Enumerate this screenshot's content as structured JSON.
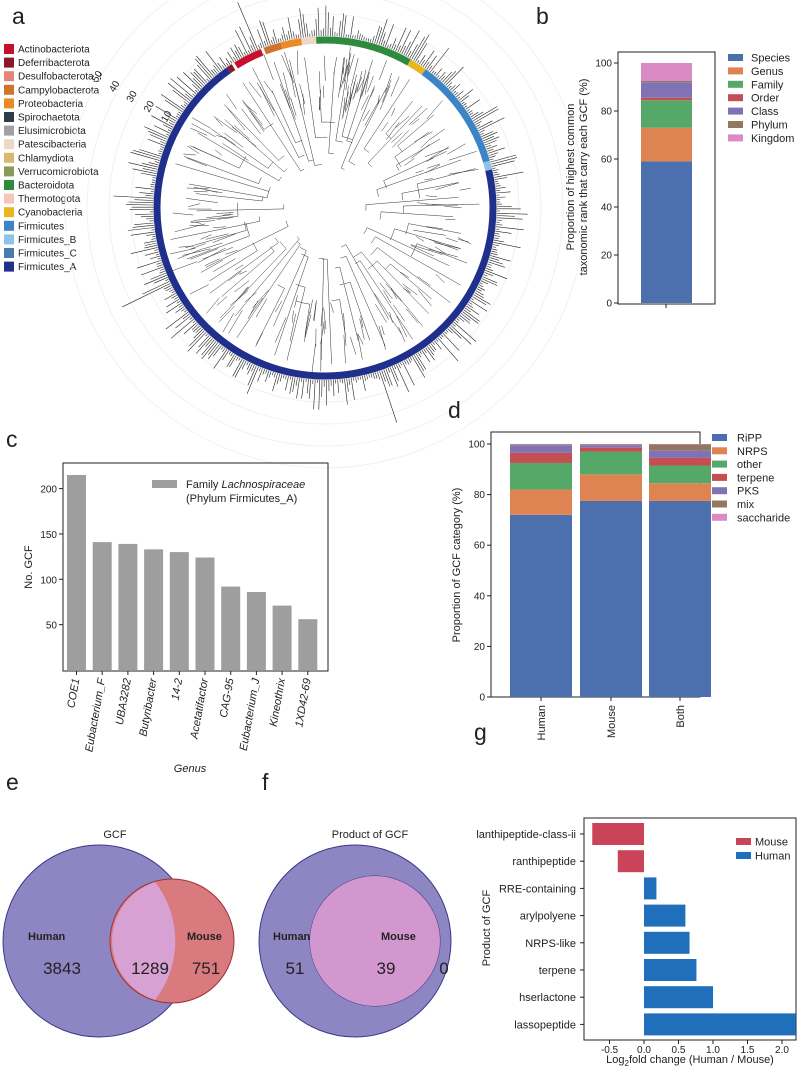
{
  "panel_labels": [
    "a",
    "b",
    "c",
    "d",
    "e",
    "f",
    "g"
  ],
  "chart_data": [
    {
      "panel": "a",
      "type": "circular-phylogeny",
      "legend": [
        {
          "name": "Actinobacteriota",
          "color": "#c8102e"
        },
        {
          "name": "Deferribacterota",
          "color": "#8a1a2a"
        },
        {
          "name": "Desulfobacterota_I",
          "color": "#e7847a"
        },
        {
          "name": "Campylobacterota",
          "color": "#d0732c"
        },
        {
          "name": "Proteobacteria",
          "color": "#ea8a28"
        },
        {
          "name": "Spirochaetota",
          "color": "#2d3b4a"
        },
        {
          "name": "Elusimicrobiota",
          "color": "#a0a0a0"
        },
        {
          "name": "Patescibacteria",
          "color": "#ecd8c6"
        },
        {
          "name": "Chlamydiota",
          "color": "#dbb66e"
        },
        {
          "name": "Verrucomicrobiota",
          "color": "#8a9a5b"
        },
        {
          "name": "Bacteroidota",
          "color": "#2e8b3e"
        },
        {
          "name": "Thermotogota",
          "color": "#f5c5b8"
        },
        {
          "name": "Cyanobacteria",
          "color": "#e8b61e"
        },
        {
          "name": "Firmicutes",
          "color": "#3b85c6"
        },
        {
          "name": "Firmicutes_B",
          "color": "#8ec2e6"
        },
        {
          "name": "Firmicutes_C",
          "color": "#4a7bb0"
        },
        {
          "name": "Firmicutes_A",
          "color": "#1f2f8c"
        }
      ],
      "radial_ticks": [
        10,
        20,
        30,
        40,
        50
      ]
    },
    {
      "panel": "b",
      "type": "bar",
      "stacked": true,
      "ylabel": "Proportion of highest common taxonomic rank that carry each GCF (%)",
      "ylabel_lines": [
        "Proportion of highest common",
        "taxonomic rank that carry each GCF (%)"
      ],
      "ylim": [
        0,
        100
      ],
      "yticks": [
        0,
        20,
        40,
        60,
        80,
        100
      ],
      "series": [
        {
          "name": "Species",
          "color": "#4c6fad",
          "values": [
            59
          ]
        },
        {
          "name": "Genus",
          "color": "#dd8452",
          "values": [
            14
          ]
        },
        {
          "name": "Family",
          "color": "#55a868",
          "values": [
            11.5
          ]
        },
        {
          "name": "Order",
          "color": "#c44e52",
          "values": [
            1
          ]
        },
        {
          "name": "Class",
          "color": "#8172b3",
          "values": [
            6.5
          ]
        },
        {
          "name": "Phylum",
          "color": "#937860",
          "values": [
            0.5
          ]
        },
        {
          "name": "Kingdom",
          "color": "#da8bc3",
          "values": [
            7.5
          ]
        }
      ]
    },
    {
      "panel": "c",
      "type": "bar",
      "xlabel": "Genus",
      "ylabel": "No. GCF",
      "ylim": [
        0,
        225
      ],
      "yticks": [
        50,
        100,
        150,
        200
      ],
      "legend": {
        "prefix": "Family ",
        "family": "Lachnospiraceae",
        "line2": "(Phylum Firmicutes_A)",
        "color": "#9e9e9e"
      },
      "categories": [
        "COE1",
        "Eubacterium_F",
        "UBA3282",
        "Butyribacter",
        "14-2",
        "Acetatifactor",
        "CAG-95",
        "Eubacterium_J",
        "Kineothrix",
        "1XD42-69"
      ],
      "values": [
        215,
        141,
        139,
        133,
        130,
        124,
        92,
        86,
        71,
        56
      ]
    },
    {
      "panel": "d",
      "type": "bar",
      "stacked": true,
      "ylabel": "Proportion of GCF category (%)",
      "ylim": [
        0,
        100
      ],
      "yticks": [
        0,
        20,
        40,
        60,
        80,
        100
      ],
      "categories": [
        "Human",
        "Mouse",
        "Both"
      ],
      "series": [
        {
          "name": "RiPP",
          "color": "#4c6fad",
          "values": [
            72,
            77.5,
            77.5
          ]
        },
        {
          "name": "NRPS",
          "color": "#dd8452",
          "values": [
            10,
            10.5,
            7
          ]
        },
        {
          "name": "other",
          "color": "#55a868",
          "values": [
            10.5,
            9,
            7
          ]
        },
        {
          "name": "terpene",
          "color": "#c44e52",
          "values": [
            4,
            1.5,
            3
          ]
        },
        {
          "name": "PKS",
          "color": "#8172b3",
          "values": [
            3,
            1,
            3
          ]
        },
        {
          "name": "mix",
          "color": "#937860",
          "values": [
            0.3,
            0.3,
            2.3
          ]
        },
        {
          "name": "saccharide",
          "color": "#da8bc3",
          "values": [
            0.2,
            0.2,
            0.2
          ]
        }
      ]
    },
    {
      "panel": "e",
      "type": "venn",
      "title": "GCF",
      "sets": [
        {
          "name": "Human",
          "only": "3843",
          "color": "#8e86c3"
        },
        {
          "name": "Mouse",
          "only": "751",
          "color": "#d97a7e"
        }
      ],
      "intersection": "1289"
    },
    {
      "panel": "f",
      "type": "venn",
      "title": "Product of GCF",
      "sets": [
        {
          "name": "Human",
          "only": "51",
          "color": "#8e86c3"
        },
        {
          "name": "Mouse",
          "only": "0",
          "color": "#d397cf"
        }
      ],
      "intersection": "39"
    },
    {
      "panel": "g",
      "type": "bar",
      "orientation": "horizontal",
      "ylabel": "Product of GCF",
      "xlabel_parts": [
        "Log",
        "2",
        "fold change (Human / Mouse)"
      ],
      "xlim": [
        -0.75,
        2.2
      ],
      "xticks": [
        -0.5,
        0.0,
        0.5,
        1.0,
        1.5,
        2.0
      ],
      "xtick_labels": [
        "-0.5",
        "0.0",
        "0.5",
        "1.0",
        "1.5",
        "2.0"
      ],
      "legend": [
        {
          "name": "Mouse",
          "color": "#c94458"
        },
        {
          "name": "Human",
          "color": "#1f6fba"
        }
      ],
      "categories": [
        "lanthipeptide-class-ii",
        "ranthipeptide",
        "RRE-containing",
        "arylpolyene",
        "NRPS-like",
        "terpene",
        "hserlactone",
        "lassopeptide"
      ],
      "values": [
        -0.75,
        -0.38,
        0.18,
        0.6,
        0.66,
        0.76,
        1.0,
        2.2
      ]
    }
  ]
}
